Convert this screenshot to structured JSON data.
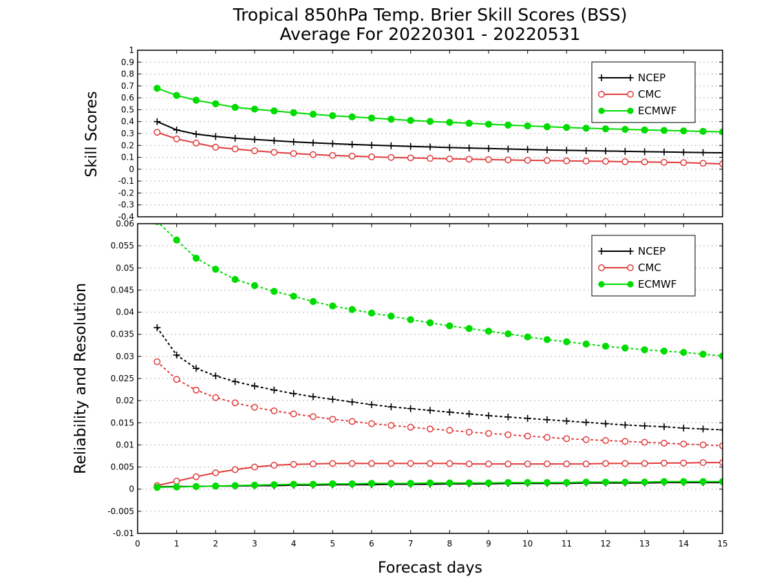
{
  "title_line1": "Tropical 850hPa Temp. Brier Skill Scores (BSS)",
  "title_line2": "Average For 20220301 - 20220531",
  "colors": {
    "NCEP": "#000000",
    "CMC": "#e03c3c",
    "ECMWF": "#00dc00",
    "grid": "#b4b4b4"
  },
  "chart_data": [
    {
      "type": "line",
      "panel": "top",
      "ylabel": "Skill Scores",
      "xlabel": "",
      "xlim": [
        0,
        15
      ],
      "ylim": [
        -0.4,
        1
      ],
      "y_ticks": [
        -0.4,
        -0.3,
        -0.2,
        -0.1,
        0,
        0.1,
        0.2,
        0.3,
        0.4,
        0.5,
        0.6,
        0.7,
        0.8,
        0.9,
        1
      ],
      "y_tick_labels": [
        "-0.4",
        "-0.3",
        "-0.2",
        "-0.1",
        "0",
        "0.1",
        "0.2",
        "0.3",
        "0.4",
        "0.5",
        "0.6",
        "0.7",
        "0.8",
        "0.9",
        "1"
      ],
      "grid": true,
      "legend": "top-right",
      "x": [
        0.5,
        1,
        1.5,
        2,
        2.5,
        3,
        3.5,
        4,
        4.5,
        5,
        5.5,
        6,
        6.5,
        7,
        7.5,
        8,
        8.5,
        9,
        9.5,
        10,
        10.5,
        11,
        11.5,
        12,
        12.5,
        13,
        13.5,
        14,
        14.5,
        15
      ],
      "series": [
        {
          "name": "NCEP",
          "style": "solid",
          "marker": "plus",
          "values": [
            0.4,
            0.33,
            0.295,
            0.275,
            0.26,
            0.25,
            0.24,
            0.23,
            0.222,
            0.215,
            0.208,
            0.202,
            0.197,
            0.192,
            0.187,
            0.182,
            0.178,
            0.174,
            0.17,
            0.166,
            0.162,
            0.159,
            0.156,
            0.153,
            0.15,
            0.147,
            0.145,
            0.142,
            0.14,
            0.138
          ]
        },
        {
          "name": "CMC",
          "style": "solid",
          "marker": "open-circle",
          "values": [
            0.31,
            0.255,
            0.22,
            0.185,
            0.17,
            0.155,
            0.142,
            0.132,
            0.123,
            0.116,
            0.11,
            0.104,
            0.099,
            0.095,
            0.091,
            0.087,
            0.084,
            0.081,
            0.078,
            0.075,
            0.073,
            0.07,
            0.068,
            0.066,
            0.063,
            0.061,
            0.058,
            0.055,
            0.05,
            0.045
          ]
        },
        {
          "name": "ECMWF",
          "style": "solid",
          "marker": "filled-circle",
          "values": [
            0.68,
            0.62,
            0.58,
            0.55,
            0.52,
            0.505,
            0.49,
            0.475,
            0.462,
            0.45,
            0.44,
            0.43,
            0.42,
            0.41,
            0.402,
            0.394,
            0.386,
            0.378,
            0.371,
            0.364,
            0.357,
            0.351,
            0.345,
            0.34,
            0.335,
            0.33,
            0.326,
            0.322,
            0.318,
            0.314
          ]
        }
      ]
    },
    {
      "type": "line",
      "panel": "bottom",
      "ylabel": "Reliability and Resolution",
      "xlabel": "Forecast days",
      "xlim": [
        0,
        15
      ],
      "ylim": [
        -0.01,
        0.06
      ],
      "x_ticks": [
        0,
        1,
        2,
        3,
        4,
        5,
        6,
        7,
        8,
        9,
        10,
        11,
        12,
        13,
        14,
        15
      ],
      "y_ticks": [
        -0.01,
        -0.005,
        0,
        0.005,
        0.01,
        0.015,
        0.02,
        0.025,
        0.03,
        0.035,
        0.04,
        0.045,
        0.05,
        0.055,
        0.06
      ],
      "y_tick_labels": [
        "-0.01",
        "-0.005",
        "0",
        "0.005",
        "0.01",
        "0.015",
        "0.02",
        "0.025",
        "0.03",
        "0.035",
        "0.04",
        "0.045",
        "0.05",
        "0.055",
        "0.06"
      ],
      "grid": true,
      "legend": "top-right",
      "x": [
        0.5,
        1,
        1.5,
        2,
        2.5,
        3,
        3.5,
        4,
        4.5,
        5,
        5.5,
        6,
        6.5,
        7,
        7.5,
        8,
        8.5,
        9,
        9.5,
        10,
        10.5,
        11,
        11.5,
        12,
        12.5,
        13,
        13.5,
        14,
        14.5,
        15
      ],
      "series": [
        {
          "name": "NCEP",
          "style": "dotted",
          "marker": "plus",
          "values": [
            0.0365,
            0.0303,
            0.0273,
            0.0256,
            0.0243,
            0.0233,
            0.0224,
            0.0216,
            0.0209,
            0.0203,
            0.0197,
            0.0191,
            0.0186,
            0.0182,
            0.0178,
            0.0174,
            0.017,
            0.0166,
            0.0163,
            0.016,
            0.0157,
            0.0154,
            0.0151,
            0.0148,
            0.0145,
            0.0143,
            0.0141,
            0.0138,
            0.0136,
            0.0134
          ]
        },
        {
          "name": "CMC",
          "style": "dotted",
          "marker": "open-circle",
          "values": [
            0.0288,
            0.0248,
            0.0224,
            0.0207,
            0.0195,
            0.0185,
            0.0177,
            0.017,
            0.0164,
            0.0158,
            0.0153,
            0.0148,
            0.0144,
            0.014,
            0.0136,
            0.0133,
            0.0129,
            0.0126,
            0.0123,
            0.012,
            0.0117,
            0.0114,
            0.0112,
            0.011,
            0.0108,
            0.0106,
            0.0104,
            0.0102,
            0.01,
            0.0098
          ]
        },
        {
          "name": "ECMWF",
          "style": "dotted",
          "marker": "filled-circle",
          "values": [
            0.0605,
            0.0563,
            0.0522,
            0.0497,
            0.0474,
            0.046,
            0.0447,
            0.0436,
            0.0424,
            0.0414,
            0.0406,
            0.0398,
            0.0391,
            0.0383,
            0.0376,
            0.0369,
            0.0363,
            0.0357,
            0.0351,
            0.0344,
            0.0338,
            0.0333,
            0.0328,
            0.0323,
            0.0319,
            0.0315,
            0.0312,
            0.0309,
            0.0305,
            0.0301
          ]
        },
        {
          "name": "NCEP",
          "style": "solid",
          "marker": "plus",
          "values": [
            0.0005,
            0.0006,
            0.0006,
            0.0007,
            0.0007,
            0.0008,
            0.0008,
            0.0009,
            0.0009,
            0.001,
            0.001,
            0.001,
            0.0011,
            0.0011,
            0.0011,
            0.0012,
            0.0012,
            0.0012,
            0.0013,
            0.0013,
            0.0013,
            0.0013,
            0.0014,
            0.0014,
            0.0014,
            0.0014,
            0.0015,
            0.0015,
            0.0015,
            0.0015
          ]
        },
        {
          "name": "CMC",
          "style": "solid",
          "marker": "open-circle",
          "values": [
            0.0008,
            0.0018,
            0.0028,
            0.0037,
            0.0044,
            0.005,
            0.0054,
            0.0056,
            0.0057,
            0.0058,
            0.0058,
            0.0058,
            0.0058,
            0.0058,
            0.0058,
            0.0058,
            0.0057,
            0.0057,
            0.0057,
            0.0057,
            0.0057,
            0.0057,
            0.0057,
            0.0058,
            0.0058,
            0.0058,
            0.0059,
            0.0059,
            0.006,
            0.006
          ]
        },
        {
          "name": "ECMWF",
          "style": "solid",
          "marker": "filled-circle",
          "values": [
            0.0004,
            0.0005,
            0.0006,
            0.0007,
            0.0008,
            0.0009,
            0.001,
            0.0011,
            0.0011,
            0.0012,
            0.0012,
            0.0013,
            0.0013,
            0.0013,
            0.0014,
            0.0014,
            0.0014,
            0.0014,
            0.0015,
            0.0015,
            0.0015,
            0.0015,
            0.0016,
            0.0016,
            0.0016,
            0.0016,
            0.0017,
            0.0017,
            0.0017,
            0.0017
          ]
        }
      ]
    }
  ]
}
